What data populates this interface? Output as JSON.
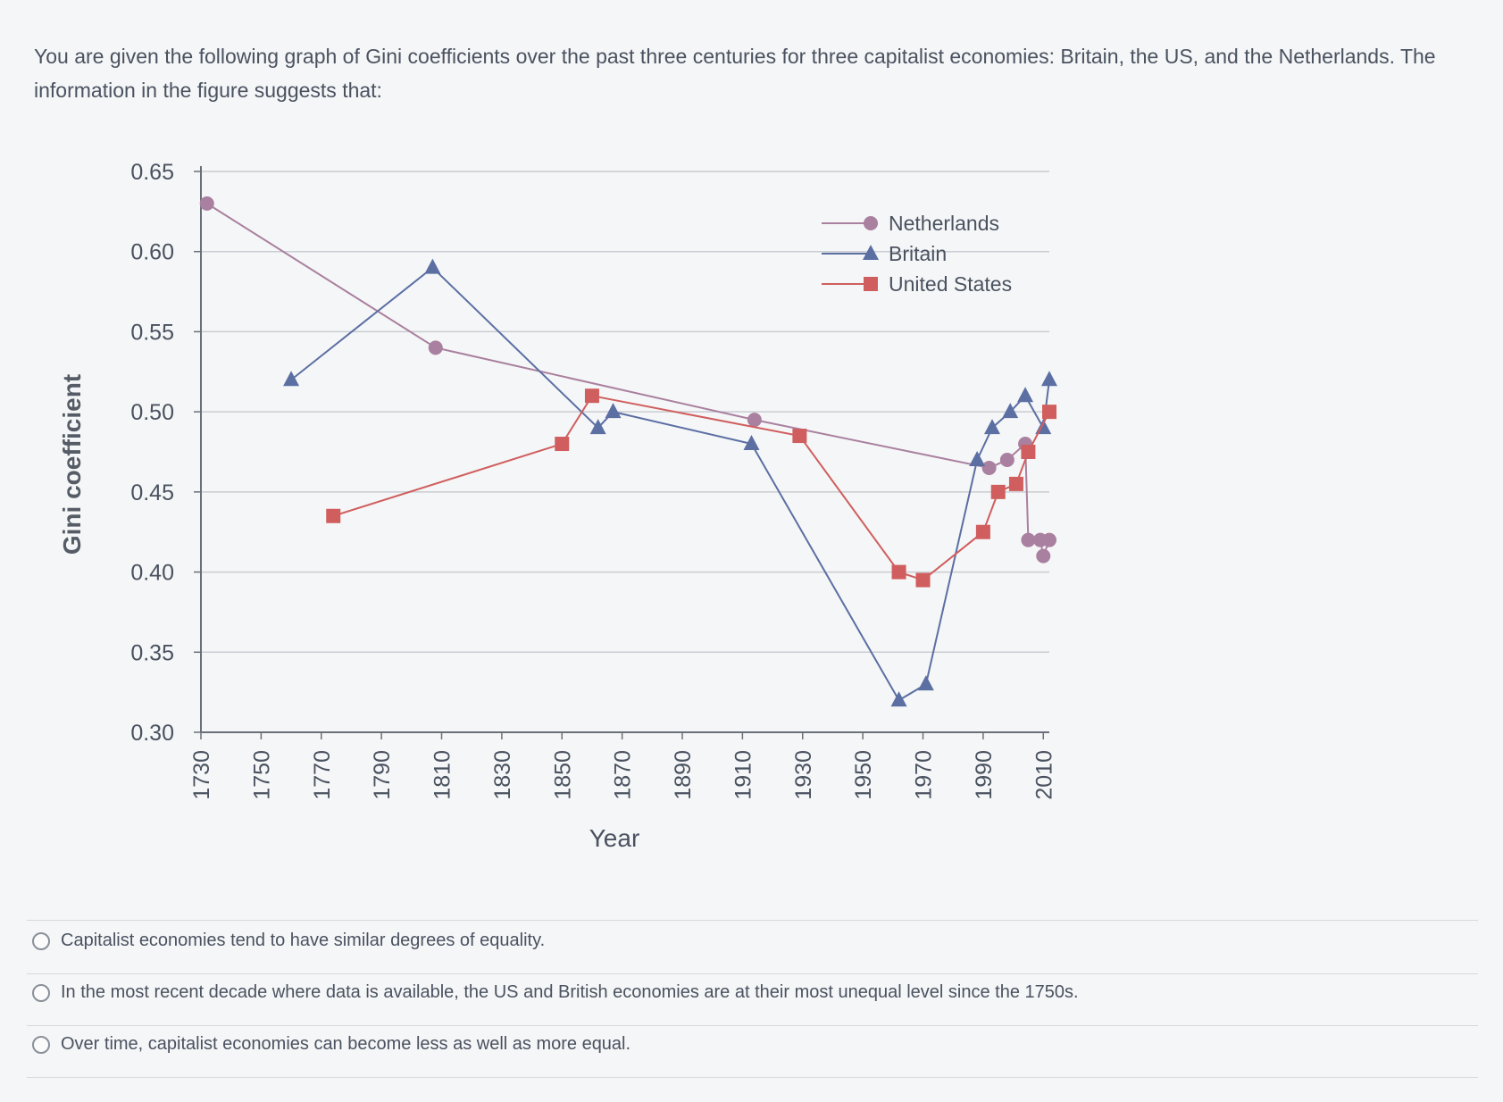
{
  "question": {
    "text": "You are given the following graph of Gini coefficients over the past three centuries for three capitalist economies: Britain, the US, and the Netherlands. The information in the figure suggests that:"
  },
  "colors": {
    "netherlands": "#a9809f",
    "britain": "#5b6fa3",
    "united_states": "#d05e5e",
    "grid": "#c9ccd1",
    "axis": "#6a7079"
  },
  "chart_data": {
    "type": "line",
    "title": "",
    "xlabel": "Year",
    "ylabel": "Gini coefficient",
    "xlim": [
      1730,
      2012
    ],
    "ylim": [
      0.3,
      0.65
    ],
    "x_ticks": [
      "1730",
      "1750",
      "1770",
      "1790",
      "1810",
      "1830",
      "1850",
      "1870",
      "1890",
      "1910",
      "1930",
      "1950",
      "1970",
      "1990",
      "2010"
    ],
    "y_ticks": [
      "0.30",
      "0.35",
      "0.40",
      "0.45",
      "0.50",
      "0.55",
      "0.60",
      "0.65"
    ],
    "grid": true,
    "legend_position": "top-right",
    "series": [
      {
        "name": "Netherlands",
        "marker": "circle",
        "color_key": "netherlands",
        "points": [
          [
            1732,
            0.63
          ],
          [
            1808,
            0.54
          ],
          [
            1914,
            0.495
          ],
          [
            1992,
            0.465
          ],
          [
            1998,
            0.47
          ],
          [
            2004,
            0.48
          ],
          [
            2005,
            0.42
          ],
          [
            2009,
            0.42
          ],
          [
            2010,
            0.41
          ],
          [
            2012,
            0.42
          ]
        ]
      },
      {
        "name": "Britain",
        "marker": "triangle",
        "color_key": "britain",
        "points": [
          [
            1760,
            0.52
          ],
          [
            1807,
            0.59
          ],
          [
            1862,
            0.49
          ],
          [
            1867,
            0.5
          ],
          [
            1913,
            0.48
          ],
          [
            1962,
            0.32
          ],
          [
            1971,
            0.33
          ],
          [
            1988,
            0.47
          ],
          [
            1993,
            0.49
          ],
          [
            1999,
            0.5
          ],
          [
            2004,
            0.51
          ],
          [
            2010,
            0.49
          ],
          [
            2012,
            0.52
          ]
        ]
      },
      {
        "name": "United States",
        "marker": "square",
        "color_key": "united_states",
        "points": [
          [
            1774,
            0.435
          ],
          [
            1850,
            0.48
          ],
          [
            1860,
            0.51
          ],
          [
            1929,
            0.485
          ],
          [
            1962,
            0.4
          ],
          [
            1970,
            0.395
          ],
          [
            1990,
            0.425
          ],
          [
            1995,
            0.45
          ],
          [
            2001,
            0.455
          ],
          [
            2005,
            0.475
          ],
          [
            2012,
            0.5
          ]
        ]
      }
    ]
  },
  "options": [
    {
      "label": "Capitalist economies tend to have similar degrees of equality."
    },
    {
      "label": "In the most recent decade where data is available, the US and British economies are at their most unequal level since the 1750s."
    },
    {
      "label": "Over time, capitalist economies can become less as well as more equal."
    }
  ]
}
